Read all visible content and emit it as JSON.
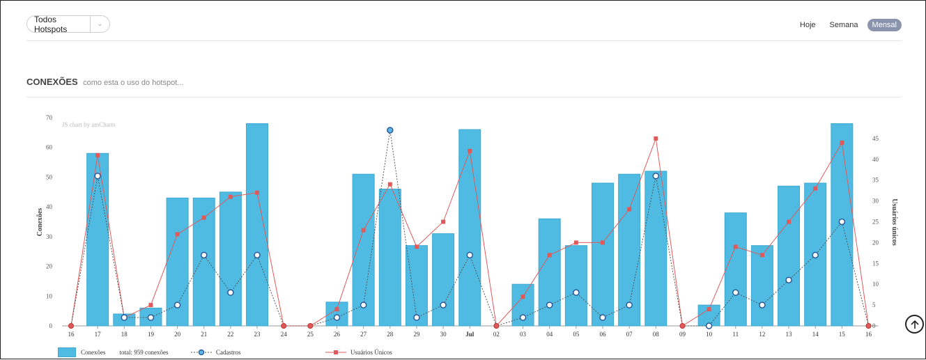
{
  "header": {
    "hotspot_select": "Todos Hotspots",
    "period_tabs": [
      "Hoje",
      "Semana",
      "Mensal"
    ],
    "active_tab": 2
  },
  "section": {
    "title": "CONEXÕES",
    "subtitle": "como esta o uso do hotspot..."
  },
  "chart_data": {
    "type": "bar",
    "credit": "JS chart by amCharts",
    "categories": [
      "16",
      "17",
      "18",
      "19",
      "20",
      "21",
      "22",
      "23",
      "24",
      "25",
      "26",
      "27",
      "28",
      "29",
      "30",
      "Jul",
      "02",
      "03",
      "04",
      "05",
      "06",
      "07",
      "08",
      "09",
      "10",
      "11",
      "12",
      "13",
      "14",
      "15",
      "16"
    ],
    "ylabel": "Conexões",
    "ylabel_right": "Usuários únicos",
    "ylim": [
      0,
      70
    ],
    "ylim_right": [
      0,
      50
    ],
    "yticks": [
      0,
      10,
      20,
      30,
      40,
      50,
      60,
      70
    ],
    "yticks_right": [
      0,
      5,
      10,
      15,
      20,
      25,
      30,
      35,
      40,
      45
    ],
    "series": [
      {
        "name": "Conexões",
        "kind": "bar",
        "axis": "left",
        "color": "#4fbbe2",
        "values": [
          0,
          58,
          4,
          6,
          43,
          43,
          45,
          68,
          0,
          0,
          8,
          51,
          46,
          27,
          31,
          66,
          0,
          14,
          36,
          27,
          48,
          51,
          52,
          0,
          7,
          38,
          27,
          47,
          48,
          68,
          0
        ]
      },
      {
        "name": "Cadastros",
        "kind": "line",
        "axis": "right",
        "color": "#3b6ba8",
        "values": [
          0,
          36,
          2,
          2,
          5,
          17,
          8,
          17,
          0,
          0,
          2,
          5,
          47,
          2,
          5,
          17,
          0,
          2,
          5,
          8,
          2,
          5,
          36,
          0,
          0,
          8,
          5,
          11,
          17,
          25,
          0
        ]
      },
      {
        "name": "Usuários Únicos",
        "kind": "line",
        "axis": "right",
        "color": "#e05a5a",
        "values": [
          0,
          41,
          2,
          5,
          22,
          26,
          31,
          32,
          0,
          0,
          4,
          23,
          34,
          19,
          25,
          42,
          0,
          7,
          17,
          20,
          20,
          28,
          45,
          0,
          4,
          19,
          17,
          25,
          33,
          44,
          0
        ]
      }
    ],
    "legend": {
      "bar_label": "Conexões",
      "total_label": "total: 959 conexões",
      "line1_label": "Cadastros",
      "line2_label": "Usuários Únicos"
    },
    "legend_position": "bottom"
  }
}
